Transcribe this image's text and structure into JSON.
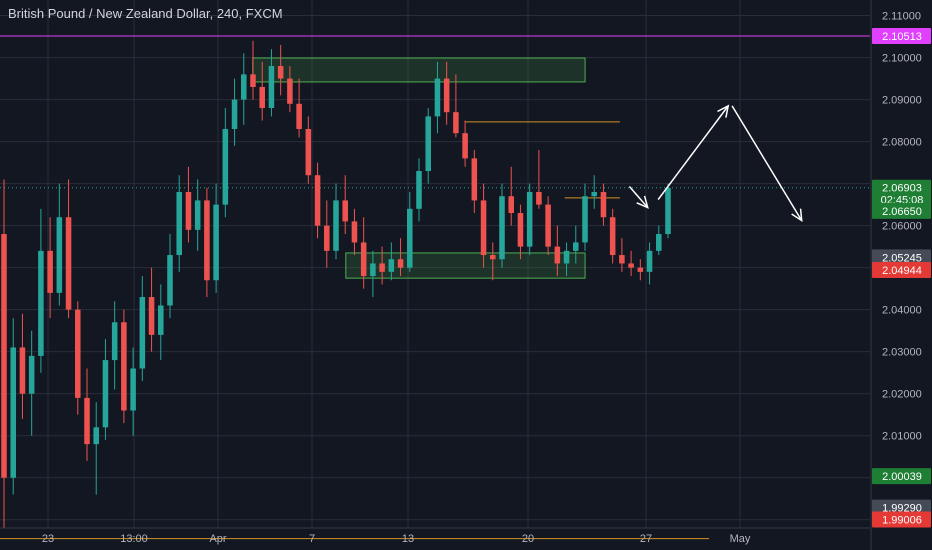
{
  "colors": {
    "background": "#131722",
    "grid": "#2a2e39",
    "up": "#26a69a",
    "down": "#ef5350",
    "axis_text": "#b2b5be",
    "zone_border": "#4caf50",
    "magenta": "#e040fb",
    "orange": "#f5a623",
    "current_tag": "#1e7e34",
    "red_tag": "#e53935",
    "grey_tag": "#454a57"
  },
  "chart_data": {
    "type": "candlestick",
    "title": "British Pound / New Zealand Dollar, 240, FXCM",
    "x_ticks": [
      "23",
      "13:00",
      "Apr",
      "7",
      "13",
      "20",
      "27",
      "May"
    ],
    "y_ticks": [
      "2.11000",
      "2.10000",
      "2.09000",
      "2.08000",
      "2.07000",
      "2.06000",
      "2.05000",
      "2.04000",
      "2.03000",
      "2.02000",
      "2.01000",
      "2.00000",
      "1.99000"
    ],
    "ylim": [
      1.9828,
      2.1137
    ],
    "grid": true,
    "price_tags": [
      {
        "label": "2.10513",
        "value": 2.10513,
        "color": "magenta"
      },
      {
        "label": "2.06903",
        "value": 2.06903,
        "color": "current_tag"
      },
      {
        "label": "02:45:08",
        "value": 2.06625,
        "color": "current_tag"
      },
      {
        "label": "2.06650",
        "value": 2.0635,
        "color": "current_tag"
      },
      {
        "label": "2.05245",
        "value": 2.05245,
        "color": "grey_tag"
      },
      {
        "label": "2.04944",
        "value": 2.04944,
        "color": "red_tag"
      },
      {
        "label": "2.00039",
        "value": 2.00039,
        "color": "current_tag"
      },
      {
        "label": "1.99290",
        "value": 1.9929,
        "color": "grey_tag"
      },
      {
        "label": "1.99006",
        "value": 1.99006,
        "color": "red_tag"
      }
    ],
    "horizontal_lines": [
      {
        "value": 2.10513,
        "style": "solid",
        "color": "magenta"
      },
      {
        "value": 2.06903,
        "style": "dotted",
        "color": "up"
      }
    ],
    "zones": [
      {
        "x0": 0.2905,
        "x1": 0.6725,
        "y0": 2.0942,
        "y1": 2.0999
      },
      {
        "x0": 0.3975,
        "x1": 0.6725,
        "y0": 2.0475,
        "y1": 2.0535
      }
    ],
    "levels": [
      {
        "x0": 0.534,
        "x1": 0.7125,
        "value": 2.0847
      },
      {
        "x0": 0.649,
        "x1": 0.7125,
        "value": 2.0666
      },
      {
        "x0": 0.0,
        "x1": 0.815,
        "value": 1.9855
      }
    ],
    "arrows": [
      {
        "from": [
          0.7235,
          2.0693
        ],
        "to": [
          0.7445,
          2.0643
        ]
      },
      {
        "from": [
          0.7565,
          2.0662
        ],
        "to": [
          0.837,
          2.0885
        ]
      },
      {
        "from": [
          0.8415,
          2.0885
        ],
        "to": [
          0.9215,
          2.0612
        ]
      }
    ],
    "candles": [
      [
        2.058,
        2.071,
        1.988,
        2.0
      ],
      [
        2.0,
        2.038,
        1.996,
        2.031
      ],
      [
        2.031,
        2.039,
        2.014,
        2.02
      ],
      [
        2.02,
        2.035,
        2.01,
        2.029
      ],
      [
        2.029,
        2.064,
        2.025,
        2.054
      ],
      [
        2.054,
        2.062,
        2.038,
        2.044
      ],
      [
        2.044,
        2.07,
        2.041,
        2.062
      ],
      [
        2.062,
        2.071,
        2.038,
        2.04
      ],
      [
        2.04,
        2.042,
        2.015,
        2.019
      ],
      [
        2.019,
        2.026,
        2.004,
        2.008
      ],
      [
        2.008,
        2.018,
        1.996,
        2.012
      ],
      [
        2.012,
        2.033,
        2.009,
        2.028
      ],
      [
        2.028,
        2.042,
        2.021,
        2.037
      ],
      [
        2.037,
        2.04,
        2.013,
        2.016
      ],
      [
        2.016,
        2.031,
        2.01,
        2.026
      ],
      [
        2.026,
        2.048,
        2.023,
        2.043
      ],
      [
        2.043,
        2.05,
        2.03,
        2.034
      ],
      [
        2.034,
        2.046,
        2.028,
        2.041
      ],
      [
        2.041,
        2.058,
        2.038,
        2.053
      ],
      [
        2.053,
        2.072,
        2.049,
        2.068
      ],
      [
        2.068,
        2.074,
        2.056,
        2.059
      ],
      [
        2.059,
        2.071,
        2.054,
        2.066
      ],
      [
        2.066,
        2.069,
        2.043,
        2.047
      ],
      [
        2.047,
        2.07,
        2.044,
        2.065
      ],
      [
        2.065,
        2.088,
        2.062,
        2.083
      ],
      [
        2.083,
        2.095,
        2.079,
        2.09
      ],
      [
        2.09,
        2.101,
        2.084,
        2.096
      ],
      [
        2.096,
        2.104,
        2.09,
        2.093
      ],
      [
        2.093,
        2.099,
        2.085,
        2.088
      ],
      [
        2.088,
        2.102,
        2.086,
        2.098
      ],
      [
        2.098,
        2.103,
        2.091,
        2.095
      ],
      [
        2.095,
        2.098,
        2.087,
        2.089
      ],
      [
        2.089,
        2.095,
        2.081,
        2.083
      ],
      [
        2.083,
        2.086,
        2.07,
        2.072
      ],
      [
        2.072,
        2.075,
        2.057,
        2.06
      ],
      [
        2.06,
        2.066,
        2.05,
        2.054
      ],
      [
        2.054,
        2.07,
        2.052,
        2.066
      ],
      [
        2.066,
        2.072,
        2.058,
        2.061
      ],
      [
        2.061,
        2.064,
        2.053,
        2.056
      ],
      [
        2.056,
        2.062,
        2.045,
        2.048
      ],
      [
        2.048,
        2.054,
        2.043,
        2.051
      ],
      [
        2.051,
        2.055,
        2.046,
        2.049
      ],
      [
        2.049,
        2.056,
        2.047,
        2.052
      ],
      [
        2.052,
        2.057,
        2.048,
        2.05
      ],
      [
        2.05,
        2.068,
        2.049,
        2.064
      ],
      [
        2.064,
        2.076,
        2.061,
        2.073
      ],
      [
        2.073,
        2.088,
        2.07,
        2.086
      ],
      [
        2.086,
        2.099,
        2.082,
        2.095
      ],
      [
        2.095,
        2.099,
        2.084,
        2.087
      ],
      [
        2.087,
        2.096,
        2.081,
        2.082
      ],
      [
        2.082,
        2.085,
        2.074,
        2.076
      ],
      [
        2.076,
        2.078,
        2.063,
        2.066
      ],
      [
        2.066,
        2.07,
        2.05,
        2.053
      ],
      [
        2.053,
        2.056,
        2.047,
        2.052
      ],
      [
        2.052,
        2.07,
        2.05,
        2.067
      ],
      [
        2.067,
        2.074,
        2.06,
        2.063
      ],
      [
        2.063,
        2.065,
        2.052,
        2.055
      ],
      [
        2.055,
        2.07,
        2.053,
        2.068
      ],
      [
        2.068,
        2.078,
        2.064,
        2.065
      ],
      [
        2.065,
        2.067,
        2.053,
        2.055
      ],
      [
        2.055,
        2.06,
        2.048,
        2.051
      ],
      [
        2.051,
        2.056,
        2.048,
        2.054
      ],
      [
        2.054,
        2.06,
        2.051,
        2.056
      ],
      [
        2.056,
        2.07,
        2.054,
        2.067
      ],
      [
        2.067,
        2.072,
        2.064,
        2.068
      ],
      [
        2.068,
        2.07,
        2.06,
        2.062
      ],
      [
        2.062,
        2.064,
        2.051,
        2.053
      ],
      [
        2.053,
        2.057,
        2.049,
        2.051
      ],
      [
        2.051,
        2.054,
        2.048,
        2.05
      ],
      [
        2.05,
        2.052,
        2.047,
        2.049
      ],
      [
        2.049,
        2.056,
        2.046,
        2.054
      ],
      [
        2.054,
        2.06,
        2.053,
        2.058
      ],
      [
        2.058,
        2.07,
        2.057,
        2.069
      ]
    ]
  }
}
